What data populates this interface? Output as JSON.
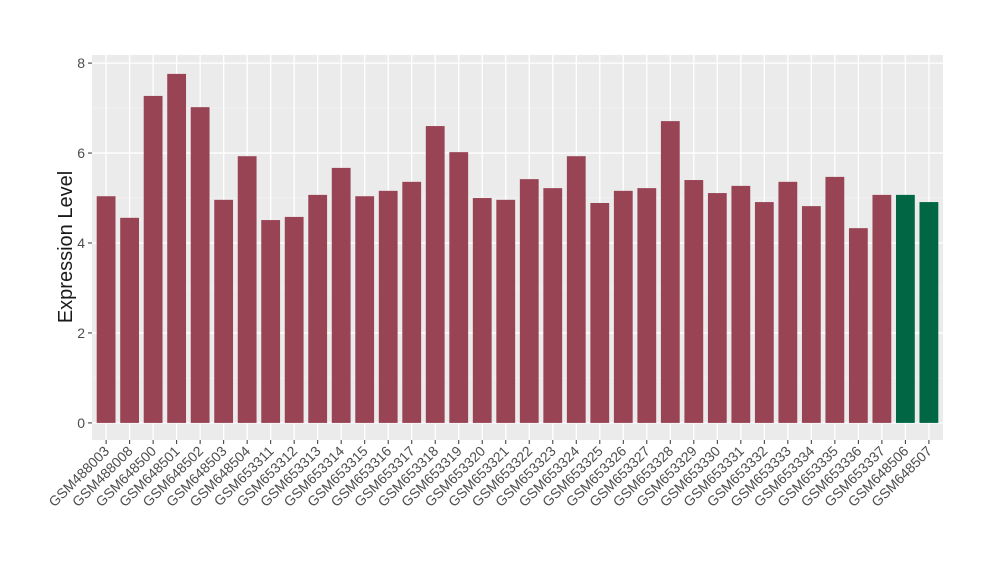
{
  "chart_data": {
    "type": "bar",
    "y_label": "Expression Level",
    "categories": [
      "GSM488003",
      "GSM488008",
      "GSM648500",
      "GSM648501",
      "GSM648502",
      "GSM648503",
      "GSM648504",
      "GSM653311",
      "GSM653312",
      "GSM653313",
      "GSM653314",
      "GSM653315",
      "GSM653316",
      "GSM653317",
      "GSM653318",
      "GSM653319",
      "GSM653320",
      "GSM653321",
      "GSM653322",
      "GSM653323",
      "GSM653324",
      "GSM653325",
      "GSM653326",
      "GSM653327",
      "GSM653328",
      "GSM653329",
      "GSM653330",
      "GSM653331",
      "GSM653332",
      "GSM653333",
      "GSM653334",
      "GSM653335",
      "GSM653336",
      "GSM653337",
      "GSM648506",
      "GSM648507"
    ],
    "values": [
      5.04,
      4.56,
      7.27,
      7.76,
      7.02,
      4.96,
      5.93,
      4.51,
      4.58,
      5.07,
      5.67,
      5.04,
      5.16,
      5.36,
      6.6,
      6.02,
      5.0,
      4.96,
      5.42,
      5.22,
      5.93,
      4.89,
      5.16,
      5.22,
      6.71,
      5.4,
      5.11,
      5.27,
      4.91,
      5.36,
      4.82,
      5.47,
      4.33,
      5.07,
      5.07,
      4.91
    ],
    "colors": [
      "#994455",
      "#994455",
      "#994455",
      "#994455",
      "#994455",
      "#994455",
      "#994455",
      "#994455",
      "#994455",
      "#994455",
      "#994455",
      "#994455",
      "#994455",
      "#994455",
      "#994455",
      "#994455",
      "#994455",
      "#994455",
      "#994455",
      "#994455",
      "#994455",
      "#994455",
      "#994455",
      "#994455",
      "#994455",
      "#994455",
      "#994455",
      "#994455",
      "#994455",
      "#994455",
      "#994455",
      "#994455",
      "#994455",
      "#994455",
      "#006644",
      "#006644"
    ],
    "ylim": [
      -0.38,
      8.18
    ],
    "yticks": [
      0,
      2,
      4,
      6,
      8
    ],
    "grid": true
  }
}
